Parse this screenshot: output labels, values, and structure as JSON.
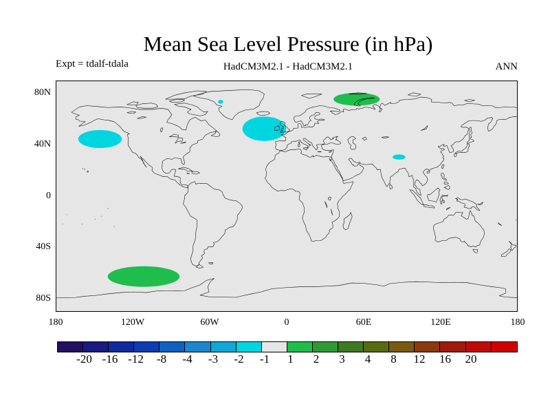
{
  "title": "Mean Sea Level Pressure (in hPa)",
  "subtitle_left": "Expt = tdalf-tdala",
  "subtitle_center": "HadCM3M2.1 - HadCM3M2.1",
  "subtitle_right": "ANN",
  "map": {
    "projection": "cylindrical-equidistant",
    "lon_range": [
      -180,
      180
    ],
    "lat_range": [
      -90,
      90
    ],
    "ocean_fill": "#e6e6e6",
    "coastline_color": "#000000"
  },
  "y_ticks": [
    {
      "label": "80N",
      "lat": 80
    },
    {
      "label": "40N",
      "lat": 40
    },
    {
      "label": "0",
      "lat": 0
    },
    {
      "label": "40S",
      "lat": -40
    },
    {
      "label": "80S",
      "lat": -80
    }
  ],
  "x_ticks": [
    {
      "label": "180",
      "lon": -180
    },
    {
      "label": "120W",
      "lon": -120
    },
    {
      "label": "60W",
      "lon": -60
    },
    {
      "label": "0",
      "lon": 0
    },
    {
      "label": "60E",
      "lon": 60
    },
    {
      "label": "120E",
      "lon": 120
    },
    {
      "label": "180",
      "lon": 180
    }
  ],
  "anomaly_regions": [
    {
      "name": "north-pacific-negative",
      "category": "-2 to -1",
      "color": "#00d5e0",
      "center_lon": -146,
      "center_lat": 45,
      "lon_half_width": 17,
      "lat_half_height": 7
    },
    {
      "name": "north-atlantic-negative",
      "category": "-2 to -1",
      "color": "#00d5e0",
      "center_lon": -18,
      "center_lat": 53,
      "lon_half_width": 17,
      "lat_half_height": 9.5
    },
    {
      "name": "central-asia-negative",
      "category": "-2 to -1",
      "color": "#00d5e0",
      "center_lon": 87,
      "center_lat": 31,
      "lon_half_width": 5,
      "lat_half_height": 2
    },
    {
      "name": "greenland-negative",
      "category": "-2 to -1",
      "color": "#00d5e0",
      "center_lon": -52,
      "center_lat": 74,
      "lon_half_width": 2,
      "lat_half_height": 1.5
    },
    {
      "name": "arctic-russia-positive",
      "category": "1 to 2",
      "color": "#1fbd4c",
      "center_lon": 54,
      "center_lat": 76,
      "lon_half_width": 18,
      "lat_half_height": 5
    },
    {
      "name": "south-pacific-positive",
      "category": "1 to 2",
      "color": "#1fbd4c",
      "center_lon": -112,
      "center_lat": -62,
      "lon_half_width": 28,
      "lat_half_height": 8
    }
  ],
  "colorbar": {
    "colors": [
      "#221060",
      "#1a1a80",
      "#0f2a9a",
      "#0d3eb0",
      "#1060c0",
      "#1a86cf",
      "#10a8d6",
      "#00d5e0",
      "#e6e6e6",
      "#1fbd4c",
      "#2f9a35",
      "#3f7a22",
      "#5a6a10",
      "#7a5a10",
      "#8a3a10",
      "#a01a10",
      "#c00a0a",
      "#d00000"
    ],
    "labels": [
      "-20",
      "-16",
      "-12",
      "-8",
      "-4",
      "-3",
      "-2",
      "-1",
      "1",
      "2",
      "3",
      "4",
      "8",
      "12",
      "16",
      "20"
    ]
  }
}
